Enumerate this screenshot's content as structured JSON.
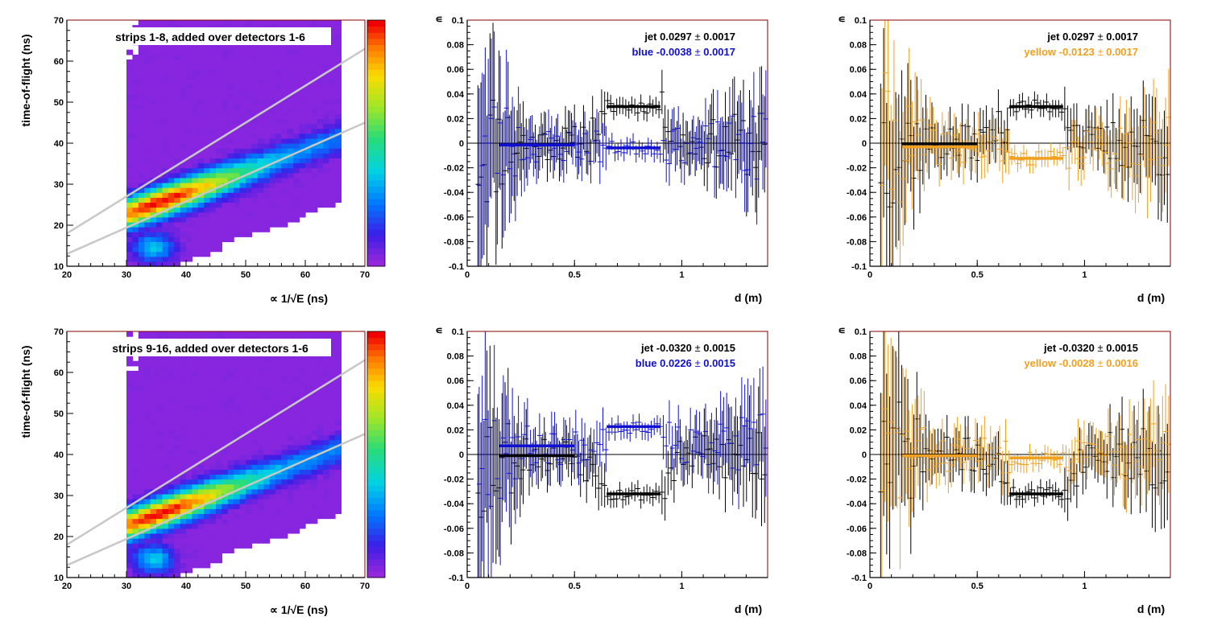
{
  "colors": {
    "blue": "#1010d0",
    "yellow": "#f0a020",
    "jet": "#000000",
    "frame": "#800000",
    "cut_lines": "#c8c8c8"
  },
  "chart_data": [
    {
      "id": "tof-top",
      "type": "heatmap",
      "annotation": "strips 1-8, added over detectors 1-6",
      "xlabel": "∝ 1/√E (ns)",
      "ylabel": "time-of-flight (ns)",
      "xlim": [
        20,
        70
      ],
      "ylim": [
        10,
        70
      ],
      "xticks": [
        "20",
        "30",
        "40",
        "50",
        "60",
        "70"
      ],
      "yticks": [
        "10",
        "20",
        "30",
        "40",
        "50",
        "60",
        "70"
      ],
      "palette": "rainbow",
      "filled_region": {
        "x_min": 30,
        "x_max": 66,
        "y_min": 10,
        "y_max": 70
      },
      "band": {
        "peak_x": 35,
        "peak_y": 25,
        "slope": 0.52
      },
      "cut_lines": [
        {
          "x": [
            20,
            70
          ],
          "y": [
            18,
            63
          ]
        },
        {
          "x": [
            20,
            70
          ],
          "y": [
            13,
            45
          ]
        }
      ]
    },
    {
      "id": "asym-top-blue",
      "type": "scatter",
      "ylabel": "∊",
      "xlabel": "d (m)",
      "xlim": [
        0,
        1.4
      ],
      "ylim": [
        -0.1,
        0.1
      ],
      "xticks": [
        "0",
        "0.5",
        "1"
      ],
      "yticks": [
        "-0.1",
        "-0.08",
        "-0.06",
        "-0.04",
        "-0.02",
        "0",
        "0.02",
        "0.04",
        "0.06",
        "0.08",
        "0.1"
      ],
      "legend": [
        {
          "label": "jet",
          "value": "0.0297",
          "pm": "±",
          "err": "0.0017",
          "color": "#000000"
        },
        {
          "label": "blue",
          "value": "-0.0038",
          "pm": "±",
          "err": "0.0017",
          "color": "#1010d0"
        }
      ],
      "series": [
        {
          "color": "#000000",
          "seed": 11,
          "mean_outer": 0.0,
          "mean_inner": 0.0297,
          "seg_y": 0.0297
        },
        {
          "color": "#1010d0",
          "seed": 23,
          "mean_outer": -0.002,
          "mean_inner": -0.0038,
          "seg_y": -0.0038
        }
      ],
      "fit_segments": [
        {
          "x": [
            0.15,
            0.5
          ],
          "y": -0.0015,
          "color": "#1010d0"
        },
        {
          "x": [
            0.65,
            0.9
          ],
          "y": 0.0297,
          "color": "#000000"
        },
        {
          "x": [
            0.65,
            0.9
          ],
          "y": -0.0038,
          "color": "#1010d0"
        }
      ]
    },
    {
      "id": "asym-top-yellow",
      "type": "scatter",
      "ylabel": "∊",
      "xlabel": "d (m)",
      "xlim": [
        0,
        1.4
      ],
      "ylim": [
        -0.1,
        0.1
      ],
      "xticks": [
        "0",
        "0.5",
        "1"
      ],
      "yticks": [
        "-0.1",
        "-0.08",
        "-0.06",
        "-0.04",
        "-0.02",
        "0",
        "0.02",
        "0.04",
        "0.06",
        "0.08",
        "0.1"
      ],
      "legend": [
        {
          "label": "jet",
          "value": "0.0297",
          "pm": "±",
          "err": "0.0017",
          "color": "#000000"
        },
        {
          "label": "yellow",
          "value": "-0.0123",
          "pm": "±",
          "err": "0.0017",
          "color": "#f0a020"
        }
      ],
      "series": [
        {
          "color": "#000000",
          "seed": 37,
          "mean_outer": 0.0,
          "mean_inner": 0.0297,
          "seg_y": 0.0297
        },
        {
          "color": "#f0a020",
          "seed": 41,
          "mean_outer": -0.003,
          "mean_inner": -0.0123,
          "seg_y": -0.0123
        }
      ],
      "fit_segments": [
        {
          "x": [
            0.15,
            0.5
          ],
          "y": -0.0005,
          "color": "#000000"
        },
        {
          "x": [
            0.15,
            0.5
          ],
          "y": -0.003,
          "color": "#f0a020"
        },
        {
          "x": [
            0.65,
            0.9
          ],
          "y": 0.0297,
          "color": "#000000"
        },
        {
          "x": [
            0.65,
            0.9
          ],
          "y": -0.0123,
          "color": "#f0a020"
        }
      ]
    },
    {
      "id": "tof-bottom",
      "type": "heatmap",
      "annotation": "strips 9-16, added over detectors 1-6",
      "xlabel": "∝ 1/√E (ns)",
      "ylabel": "time-of-flight (ns)",
      "xlim": [
        20,
        70
      ],
      "ylim": [
        10,
        70
      ],
      "xticks": [
        "20",
        "30",
        "40",
        "50",
        "60",
        "70"
      ],
      "yticks": [
        "10",
        "20",
        "30",
        "40",
        "50",
        "60",
        "70"
      ],
      "palette": "rainbow",
      "filled_region": {
        "x_min": 30,
        "x_max": 66,
        "y_min": 10,
        "y_max": 70
      },
      "band": {
        "peak_x": 35,
        "peak_y": 25,
        "slope": 0.52
      },
      "cut_lines": [
        {
          "x": [
            20,
            70
          ],
          "y": [
            18,
            63
          ]
        },
        {
          "x": [
            20,
            70
          ],
          "y": [
            13,
            45
          ]
        }
      ]
    },
    {
      "id": "asym-bottom-blue",
      "type": "scatter",
      "ylabel": "∊",
      "xlabel": "d (m)",
      "xlim": [
        0,
        1.4
      ],
      "ylim": [
        -0.1,
        0.1
      ],
      "xticks": [
        "0",
        "0.5",
        "1"
      ],
      "yticks": [
        "-0.1",
        "-0.08",
        "-0.06",
        "-0.04",
        "-0.02",
        "0",
        "0.02",
        "0.04",
        "0.06",
        "0.08",
        "0.1"
      ],
      "legend": [
        {
          "label": "jet",
          "value": "-0.0320",
          "pm": "±",
          "err": "0.0015",
          "color": "#000000"
        },
        {
          "label": "blue",
          "value": " 0.0226",
          "pm": "±",
          "err": "0.0015",
          "color": "#1010d0"
        }
      ],
      "series": [
        {
          "color": "#000000",
          "seed": 53,
          "mean_outer": 0.0,
          "mean_inner": -0.032,
          "seg_y": -0.032
        },
        {
          "color": "#1010d0",
          "seed": 67,
          "mean_outer": 0.006,
          "mean_inner": 0.0226,
          "seg_y": 0.0226
        }
      ],
      "fit_segments": [
        {
          "x": [
            0.15,
            0.5
          ],
          "y": 0.007,
          "color": "#1010d0"
        },
        {
          "x": [
            0.15,
            0.5
          ],
          "y": -0.001,
          "color": "#000000"
        },
        {
          "x": [
            0.65,
            0.9
          ],
          "y": 0.0226,
          "color": "#1010d0"
        },
        {
          "x": [
            0.65,
            0.9
          ],
          "y": -0.032,
          "color": "#000000"
        }
      ]
    },
    {
      "id": "asym-bottom-yellow",
      "type": "scatter",
      "ylabel": "∊",
      "xlabel": "d (m)",
      "xlim": [
        0,
        1.4
      ],
      "ylim": [
        -0.1,
        0.1
      ],
      "xticks": [
        "0",
        "0.5",
        "1"
      ],
      "yticks": [
        "-0.1",
        "-0.08",
        "-0.06",
        "-0.04",
        "-0.02",
        "0",
        "0.02",
        "0.04",
        "0.06",
        "0.08",
        "0.1"
      ],
      "legend": [
        {
          "label": "jet",
          "value": "-0.0320",
          "pm": "±",
          "err": "0.0015",
          "color": "#000000"
        },
        {
          "label": "yellow",
          "value": "-0.0028",
          "pm": "±",
          "err": "0.0016",
          "color": "#f0a020"
        }
      ],
      "series": [
        {
          "color": "#000000",
          "seed": 71,
          "mean_outer": 0.0,
          "mean_inner": -0.032,
          "seg_y": -0.032
        },
        {
          "color": "#f0a020",
          "seed": 83,
          "mean_outer": 0.0,
          "mean_inner": -0.0028,
          "seg_y": -0.0028
        }
      ],
      "fit_segments": [
        {
          "x": [
            0.15,
            0.5
          ],
          "y": -0.0005,
          "color": "#000000"
        },
        {
          "x": [
            0.15,
            0.5
          ],
          "y": -0.001,
          "color": "#f0a020"
        },
        {
          "x": [
            0.65,
            0.9
          ],
          "y": -0.0028,
          "color": "#f0a020"
        },
        {
          "x": [
            0.65,
            0.9
          ],
          "y": -0.032,
          "color": "#000000"
        }
      ]
    }
  ]
}
